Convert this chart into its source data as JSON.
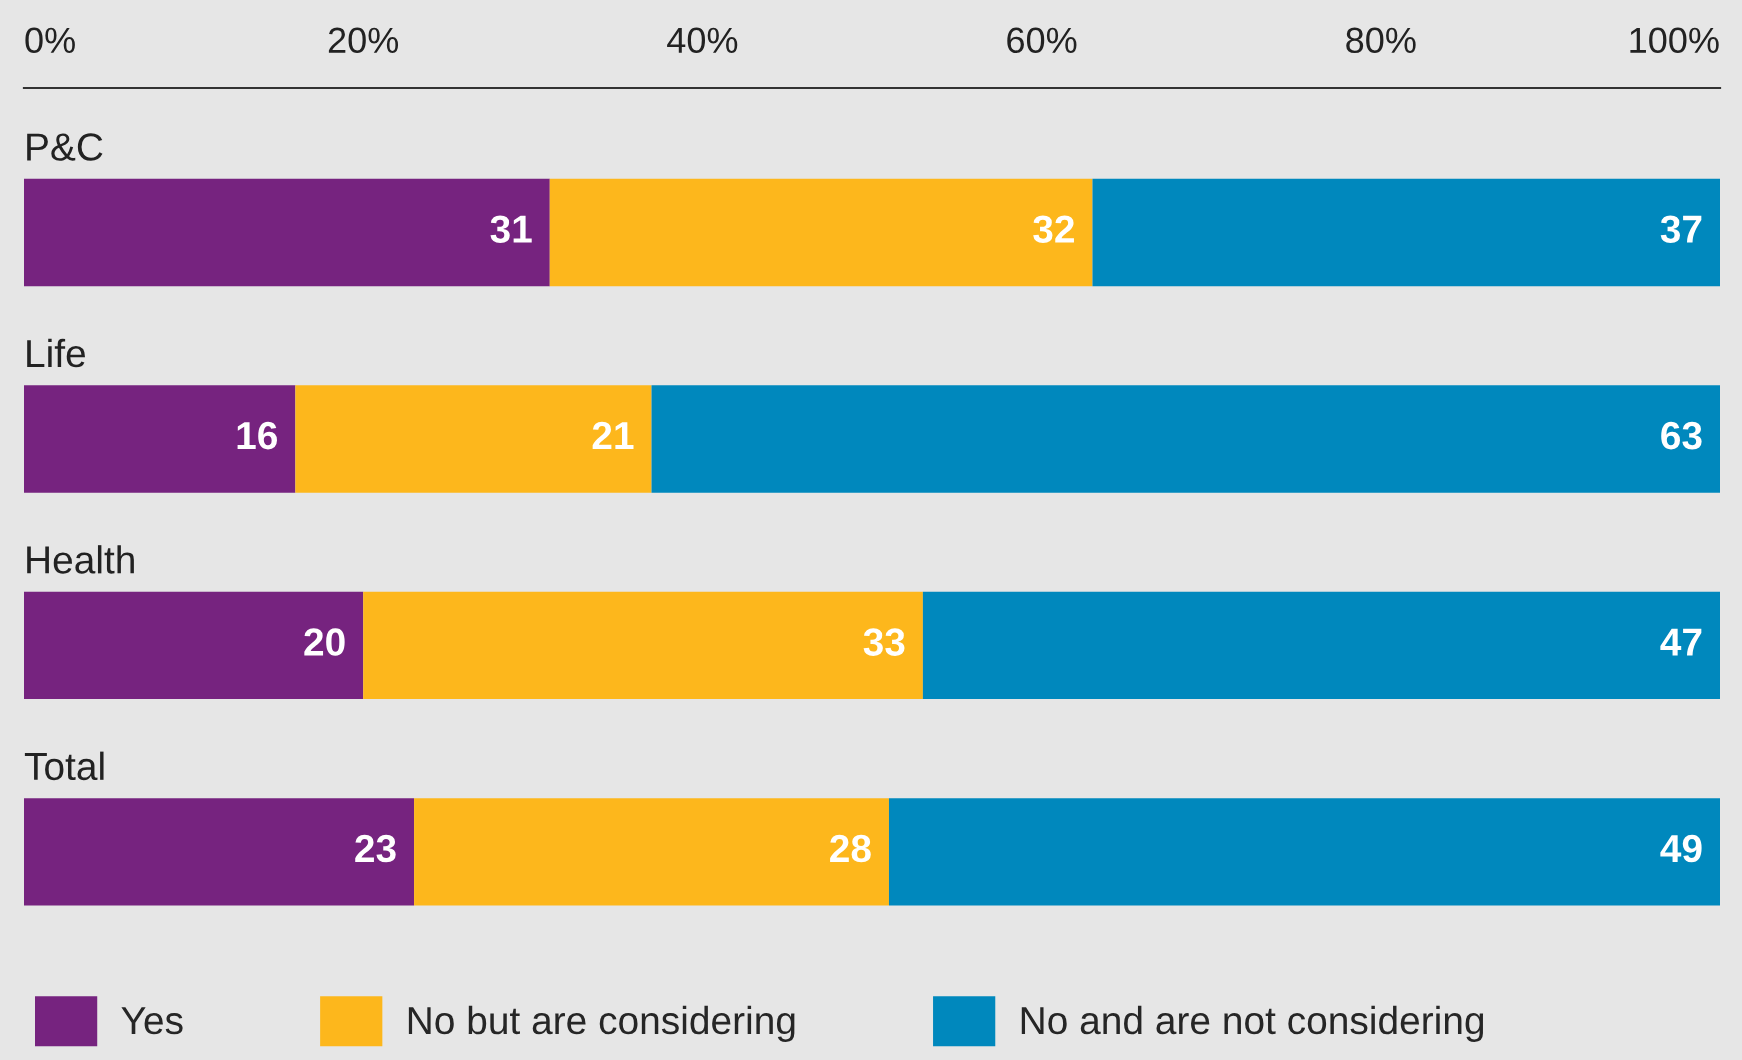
{
  "chart_data": {
    "type": "bar",
    "orientation": "horizontal",
    "stacked": true,
    "categories": [
      "P&C",
      "Life",
      "Health",
      "Total"
    ],
    "series": [
      {
        "name": "Yes",
        "color": "#76237f",
        "values": [
          31,
          16,
          20,
          23
        ]
      },
      {
        "name": "No but are considering",
        "color": "#fdb71c",
        "values": [
          32,
          21,
          33,
          28
        ]
      },
      {
        "name": "No and are not considering",
        "color": "#0088bd",
        "values": [
          37,
          63,
          47,
          49
        ]
      }
    ],
    "xlim": [
      0,
      100
    ],
    "xticks": [
      {
        "value": 0,
        "label": "0%"
      },
      {
        "value": 20,
        "label": "20%"
      },
      {
        "value": 40,
        "label": "40%"
      },
      {
        "value": 60,
        "label": "60%"
      },
      {
        "value": 80,
        "label": "80%"
      },
      {
        "value": 100,
        "label": "100%"
      }
    ],
    "data_labels": true,
    "legend": "bottom",
    "grid": false
  }
}
